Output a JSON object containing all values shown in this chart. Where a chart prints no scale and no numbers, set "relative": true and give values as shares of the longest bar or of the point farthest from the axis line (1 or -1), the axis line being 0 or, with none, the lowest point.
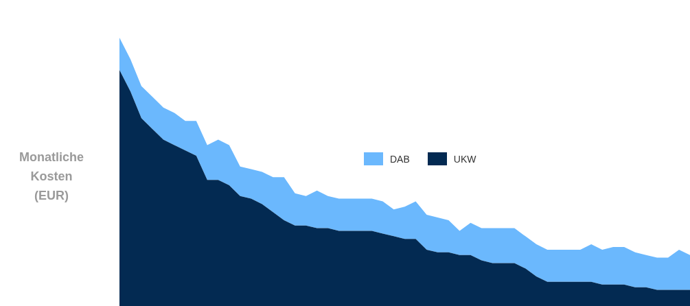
{
  "chart_data": {
    "type": "area",
    "ylabel": "Monatliche Kosten (EUR)",
    "relative": true,
    "stacked": true,
    "legend": "center",
    "categories": [
      null,
      null,
      null,
      null,
      null,
      null,
      null,
      null,
      null,
      null,
      null,
      null,
      null,
      null,
      null,
      null,
      null,
      null,
      null,
      null,
      null,
      null,
      null,
      null,
      null,
      null,
      null,
      null,
      null,
      null,
      null,
      null,
      null,
      null,
      null,
      null,
      null,
      null,
      null,
      null,
      null,
      null,
      null,
      null,
      null,
      null,
      null,
      null,
      null,
      null,
      null,
      null,
      null
    ],
    "series": [
      {
        "name": "UKW",
        "color": "#032a52",
        "values": [
          0.88,
          0.8,
          0.7,
          0.66,
          0.62,
          0.6,
          0.58,
          0.56,
          0.47,
          0.47,
          0.45,
          0.41,
          0.4,
          0.38,
          0.35,
          0.32,
          0.3,
          0.3,
          0.29,
          0.29,
          0.28,
          0.28,
          0.28,
          0.28,
          0.27,
          0.26,
          0.25,
          0.25,
          0.21,
          0.2,
          0.2,
          0.19,
          0.19,
          0.17,
          0.16,
          0.16,
          0.16,
          0.14,
          0.11,
          0.09,
          0.09,
          0.09,
          0.09,
          0.09,
          0.08,
          0.08,
          0.08,
          0.07,
          0.07,
          0.06,
          0.06,
          0.06,
          0.06
        ]
      },
      {
        "name": "DAB",
        "color": "#6bb8fd",
        "values": [
          0.12,
          0.12,
          0.12,
          0.12,
          0.12,
          0.12,
          0.11,
          0.13,
          0.13,
          0.15,
          0.15,
          0.11,
          0.11,
          0.12,
          0.13,
          0.16,
          0.12,
          0.11,
          0.14,
          0.12,
          0.12,
          0.12,
          0.12,
          0.12,
          0.12,
          0.1,
          0.12,
          0.14,
          0.13,
          0.13,
          0.12,
          0.09,
          0.12,
          0.12,
          0.13,
          0.13,
          0.13,
          0.12,
          0.12,
          0.12,
          0.12,
          0.12,
          0.12,
          0.14,
          0.13,
          0.14,
          0.14,
          0.13,
          0.12,
          0.12,
          0.12,
          0.15,
          0.13
        ]
      }
    ]
  }
}
